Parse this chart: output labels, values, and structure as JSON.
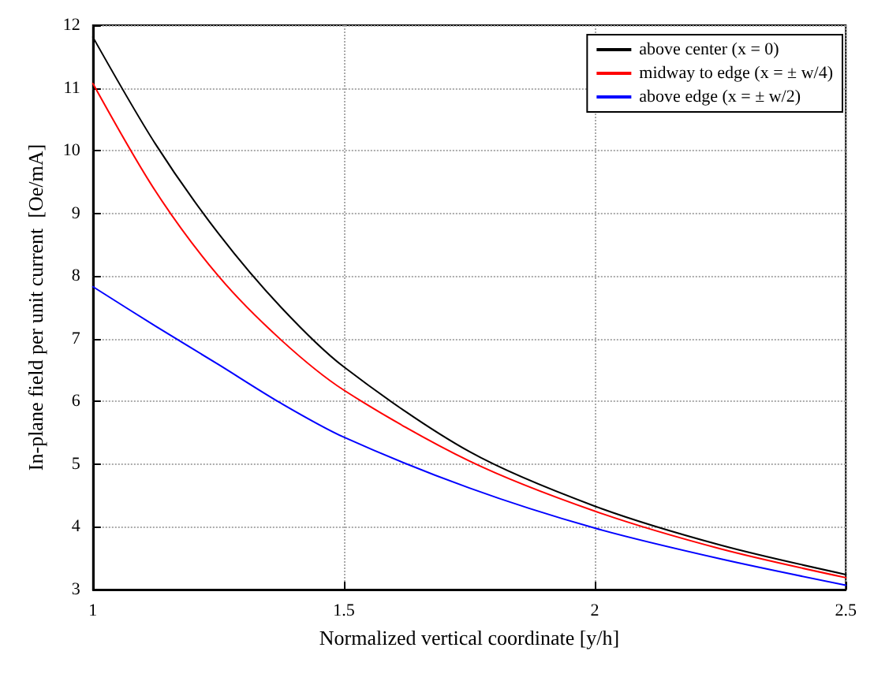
{
  "chart_data": {
    "type": "line",
    "xlabel": "Normalized vertical coordinate [y/h]",
    "ylabel": "In-plane field per unit current  [Oe/mA]",
    "x": [
      1,
      1.125,
      1.25,
      1.375,
      1.5,
      1.75,
      2,
      2.25,
      2.5
    ],
    "series": [
      {
        "name": "above center (x = 0)",
        "color": "#000000",
        "values": [
          11.81,
          10.1,
          8.68,
          7.5,
          6.55,
          5.2,
          4.33,
          3.71,
          3.24
        ]
      },
      {
        "name": "midway to edge (x = ± w/4)",
        "color": "#ff0000",
        "values": [
          11.07,
          9.35,
          8.0,
          6.98,
          6.18,
          5.05,
          4.25,
          3.65,
          3.19
        ]
      },
      {
        "name": "above edge (x = ± w/2)",
        "color": "#0000ff",
        "values": [
          7.83,
          7.2,
          6.59,
          5.97,
          5.43,
          4.62,
          3.98,
          3.49,
          3.07
        ]
      }
    ],
    "xlim": [
      1,
      2.5
    ],
    "xticks": [
      1,
      1.5,
      2,
      2.5
    ],
    "ylim": [
      3,
      12
    ],
    "yticks": [
      3,
      4,
      5,
      6,
      7,
      8,
      9,
      10,
      11,
      12
    ],
    "grid": true,
    "legend": "top right",
    "marker": "none",
    "line_style": "solid"
  }
}
